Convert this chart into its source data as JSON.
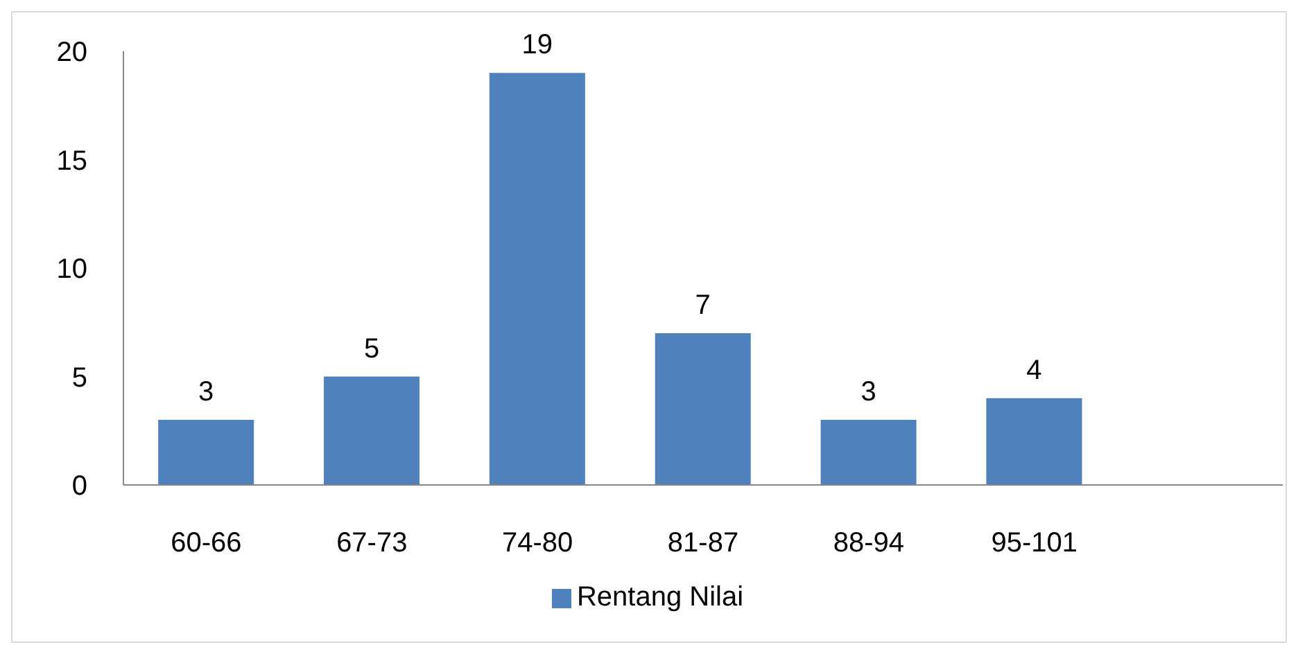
{
  "chart_data": {
    "type": "bar",
    "categories": [
      "60-66",
      "67-73",
      "74-80",
      "81-87",
      "88-94",
      "95-101",
      null
    ],
    "series": [
      {
        "name": "Rentang Nilai",
        "color": "#4f81bd",
        "values": [
          3,
          5,
          19,
          7,
          3,
          4,
          null
        ]
      }
    ],
    "ylim": [
      0,
      20
    ],
    "yticks": [
      0,
      5,
      10,
      15,
      20
    ],
    "grid": false,
    "legend": "bottom",
    "data_labels": true
  }
}
